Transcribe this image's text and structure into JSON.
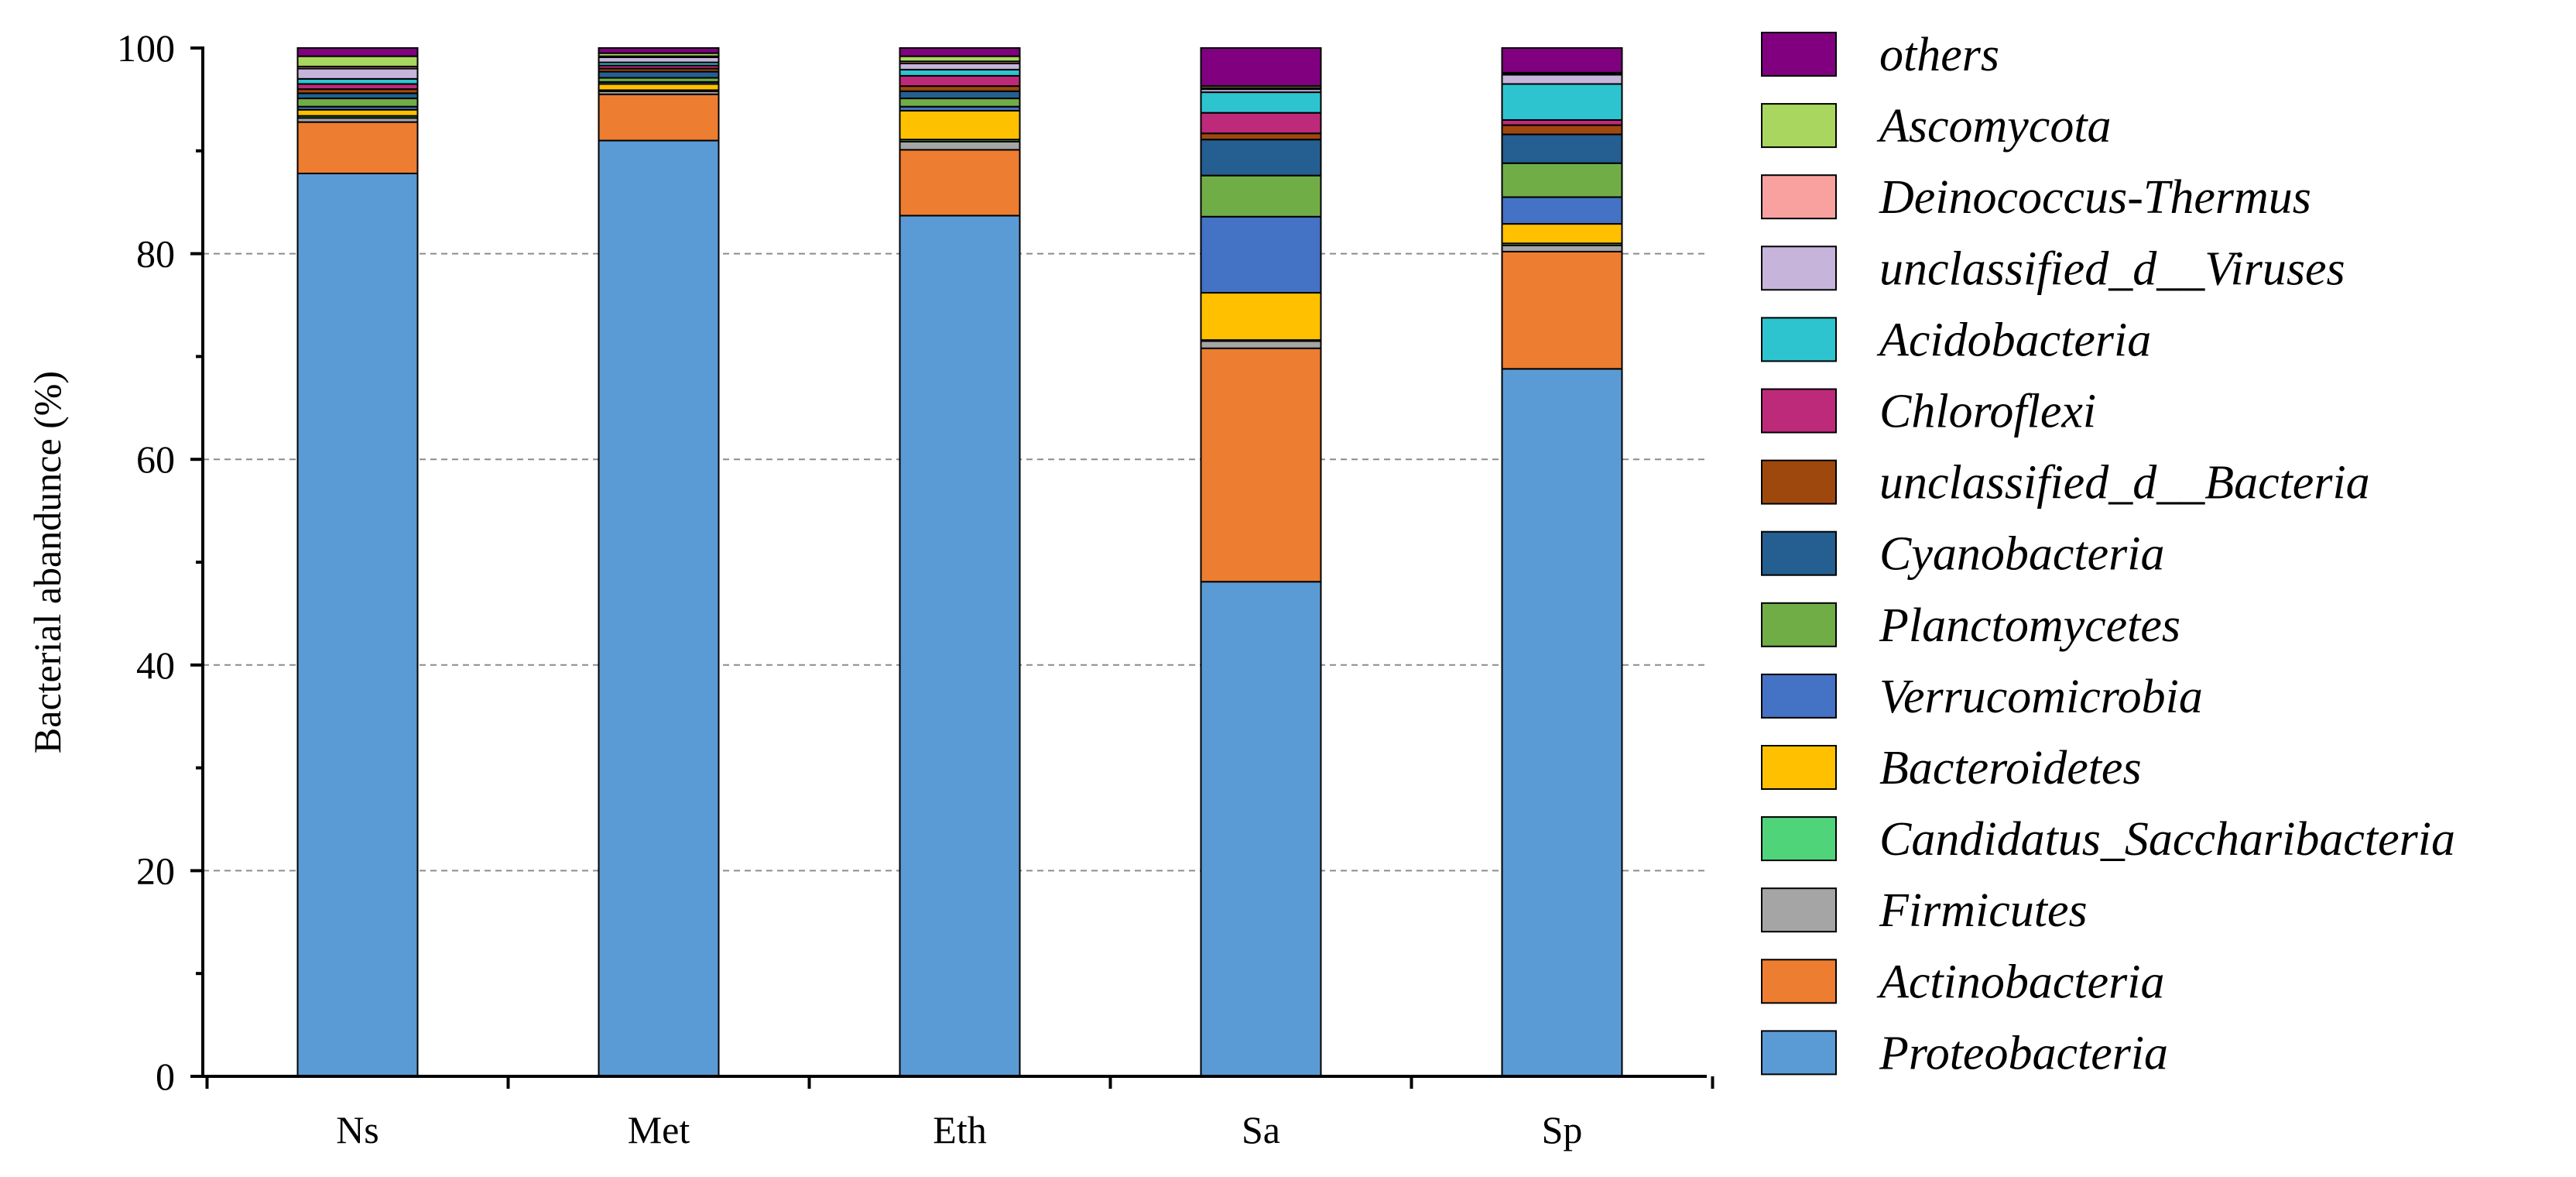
{
  "chart_data": {
    "type": "bar",
    "stacked": true,
    "title": "",
    "xlabel": "",
    "ylabel": "Bacterial abandunce (%)",
    "ylim": [
      0,
      100
    ],
    "yticks": [
      "0",
      "20",
      "40",
      "60",
      "80",
      "100"
    ],
    "ytick_values": [
      0,
      20,
      40,
      60,
      80,
      100
    ],
    "grid": "horizontal dashed",
    "legend_position": "right",
    "categories": [
      "Ns",
      "Met",
      "Eth",
      "Sa",
      "Sp"
    ],
    "series": [
      {
        "name": "Proteobacteria",
        "color": "#5B9BD5",
        "values": [
          87.8,
          91.0,
          83.7,
          48.1,
          68.8
        ]
      },
      {
        "name": "Actinobacteria",
        "color": "#ED7D31",
        "values": [
          5.0,
          4.5,
          6.4,
          22.7,
          11.4
        ]
      },
      {
        "name": "Firmicutes",
        "color": "#A5A5A5",
        "values": [
          0.4,
          0.3,
          0.8,
          0.7,
          0.6
        ]
      },
      {
        "name": "Candidatus_Saccharibacteria",
        "color": "#4FD47A",
        "values": [
          0.2,
          0.1,
          0.2,
          0.1,
          0.2
        ]
      },
      {
        "name": "Bacteroidetes",
        "color": "#FFC000",
        "values": [
          0.6,
          0.6,
          2.8,
          4.6,
          1.9
        ]
      },
      {
        "name": "Verrucomicrobia",
        "color": "#4472C4",
        "values": [
          0.3,
          0.2,
          0.4,
          7.4,
          2.6
        ]
      },
      {
        "name": "Planctomycetes",
        "color": "#70AD47",
        "values": [
          0.8,
          0.4,
          0.8,
          4.0,
          3.3
        ]
      },
      {
        "name": "Cyanobacteria",
        "color": "#255E91",
        "values": [
          0.5,
          0.6,
          0.7,
          3.5,
          2.8
        ]
      },
      {
        "name": "unclassified_d__Bacteria",
        "color": "#9E480E",
        "values": [
          0.4,
          0.3,
          0.5,
          0.6,
          0.9
        ]
      },
      {
        "name": "Chloroflexi",
        "color": "#BE2A7A",
        "values": [
          0.5,
          0.3,
          1.0,
          2.0,
          0.5
        ]
      },
      {
        "name": "Acidobacteria",
        "color": "#2EC4CF",
        "values": [
          0.5,
          0.3,
          0.6,
          2.0,
          3.5
        ]
      },
      {
        "name": "unclassified_d__Viruses",
        "color": "#C6B4DB",
        "values": [
          1.0,
          0.5,
          0.6,
          0.3,
          0.9
        ]
      },
      {
        "name": "Deinococcus-Thermus",
        "color": "#F9A19F",
        "values": [
          0.2,
          0.1,
          0.2,
          0.1,
          0.1
        ]
      },
      {
        "name": "Ascomycota",
        "color": "#A9D65E",
        "values": [
          1.0,
          0.3,
          0.5,
          0.2,
          0.1
        ]
      },
      {
        "name": "others",
        "color": "#800080",
        "values": [
          0.8,
          0.5,
          0.8,
          3.7,
          2.4
        ]
      }
    ],
    "axis_color": "#000000",
    "grid_color": "#8c8c8c"
  }
}
